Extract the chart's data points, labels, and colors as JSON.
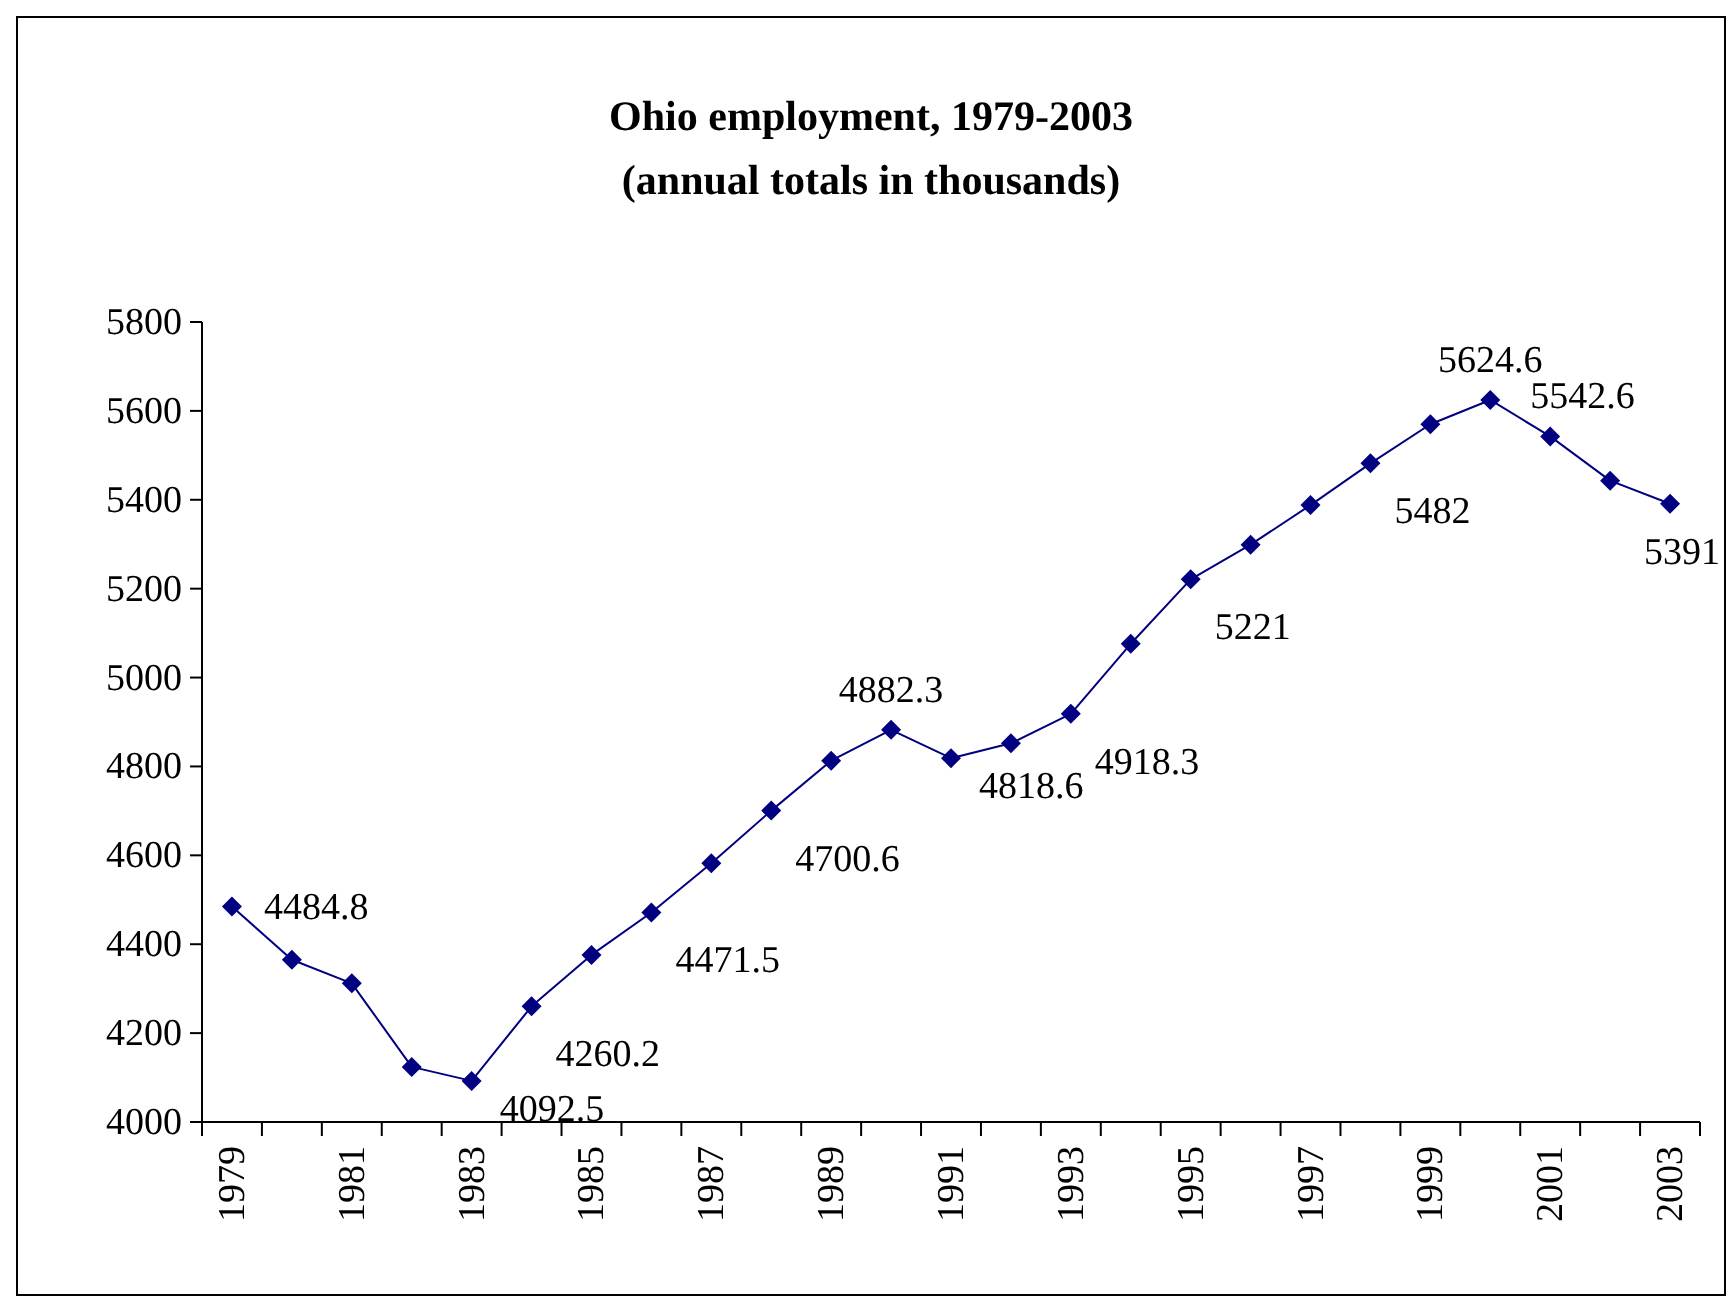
{
  "chart_data": {
    "type": "line",
    "title": "Ohio employment, 1979-2003",
    "subtitle": "(annual totals in thousands)",
    "categories": [
      "1979",
      null,
      "1981",
      null,
      "1983",
      null,
      "1985",
      null,
      "1987",
      null,
      "1989",
      null,
      "1991",
      null,
      "1993",
      null,
      "1995",
      null,
      "1997",
      null,
      "1999",
      null,
      "2001",
      null,
      "2003"
    ],
    "series": [
      {
        "color": "#000080",
        "values": [
          4484.8,
          4365,
          4312,
          4124,
          4092.5,
          4260.2,
          4376,
          4471.5,
          4582,
          4700.6,
          4813,
          4882.3,
          4818.6,
          4852,
          4918.3,
          5076,
          5221,
          5299,
          5388,
          5482,
          5570,
          5624.6,
          5542.6,
          5443,
          5391
        ],
        "value_labels": [
          "4484.8",
          null,
          null,
          null,
          "4092.5",
          "4260.2",
          null,
          "4471.5",
          null,
          "4700.6",
          null,
          "4882.3",
          "4818.6",
          null,
          "4918.3",
          null,
          "5221",
          null,
          null,
          "5482",
          null,
          "5624.6",
          "5542.6",
          null,
          "5391"
        ]
      }
    ],
    "ylim": [
      4000,
      5800
    ],
    "yticks": [
      4000,
      4200,
      4400,
      4600,
      4800,
      5000,
      5200,
      5400,
      5600,
      5800
    ],
    "grid": false,
    "marker": "diamond",
    "line_style": "solid"
  }
}
